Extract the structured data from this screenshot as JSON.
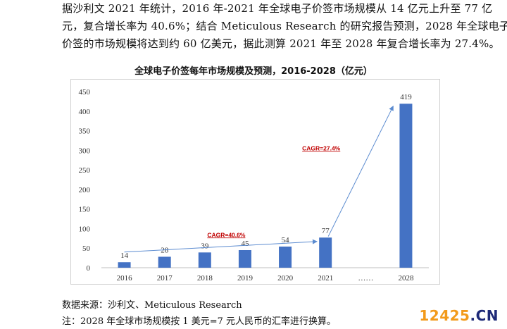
{
  "paragraph": {
    "line1": "据沙利文 2021 年统计，2016 年-2021 年全球电子价签市场规模从 14 亿元上升至 77 亿",
    "line2": "元，复合增长率为 40.6%；结合 Meticulous Research 的研究报告预测，2028 年全球电子",
    "line3": "价签的市场规模将达到约 60 亿美元，据此测算 2021 年至 2028 年复合增长率为 27.4%。"
  },
  "chart_data": {
    "type": "bar",
    "title": "全球电子价签每年市场规模及预测，2016-2028（亿元）",
    "categories": [
      "2016",
      "2017",
      "2018",
      "2019",
      "2020",
      "2021",
      "……",
      "2028"
    ],
    "values": [
      14,
      28,
      39,
      45,
      54,
      77,
      null,
      419
    ],
    "data_labels": [
      "14",
      "28",
      "39",
      "45",
      "54",
      "77",
      "",
      "419"
    ],
    "ylim": [
      0,
      450
    ],
    "yticks": [
      "0",
      "50",
      "100",
      "150",
      "200",
      "250",
      "300",
      "350",
      "400",
      "450"
    ],
    "xlabel": "",
    "ylabel": "",
    "grid": false,
    "bar_color": "#4472c4",
    "annotations": [
      {
        "text": "CAGR=40.6%",
        "from": "2016",
        "to": "2021",
        "color": "#c00000"
      },
      {
        "text": "CAGR=27.4%",
        "from": "2021",
        "to": "2028",
        "color": "#c00000"
      }
    ],
    "arrow_color": "#5b8bd0"
  },
  "notes": {
    "source": "数据来源：沙利文、Meticulous Research",
    "fx": "注：2028 年全球市场规模按 1 美元=7 元人民币的汇率进行换算。"
  },
  "watermark": {
    "number": "12425",
    "tld": ".CN"
  }
}
